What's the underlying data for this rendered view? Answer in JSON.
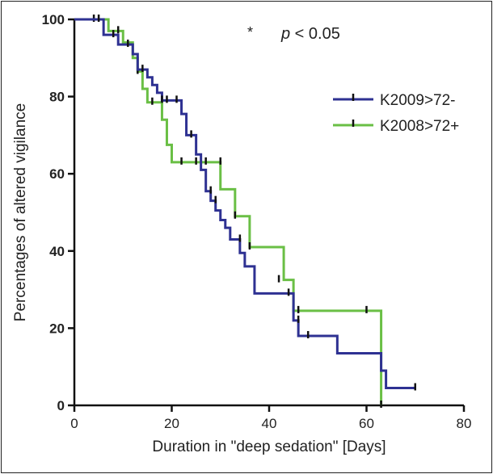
{
  "chart_data": {
    "type": "line",
    "subtype": "kaplan-meier-step",
    "title": "",
    "xlabel": "Duration in \"deep sedation\" [Days]",
    "ylabel": "Percentages of altered vigilance",
    "xlim": [
      0,
      80
    ],
    "ylim": [
      0,
      100
    ],
    "xticks": [
      "0",
      "20",
      "40",
      "60",
      "80"
    ],
    "yticks": [
      "0",
      "20",
      "40",
      "60",
      "80",
      "100"
    ],
    "annotation": {
      "star": "*",
      "p": "p",
      "rest": " < 0.05"
    },
    "legend_position": "top-right",
    "series": [
      {
        "name": "K2009>72-",
        "color": "#2e3192",
        "steps": [
          [
            0,
            100
          ],
          [
            6,
            96
          ],
          [
            9,
            93.5
          ],
          [
            12,
            91
          ],
          [
            13,
            87
          ],
          [
            15,
            85
          ],
          [
            16,
            83
          ],
          [
            17,
            81
          ],
          [
            18,
            79
          ],
          [
            22,
            75.5
          ],
          [
            23,
            70
          ],
          [
            25,
            65
          ],
          [
            26,
            61
          ],
          [
            27,
            55.5
          ],
          [
            28,
            53
          ],
          [
            29,
            50.5
          ],
          [
            30,
            48
          ],
          [
            31,
            46
          ],
          [
            32,
            43
          ],
          [
            34,
            39.5
          ],
          [
            35,
            36
          ],
          [
            37,
            29
          ],
          [
            45,
            22
          ],
          [
            46,
            18
          ],
          [
            54,
            13.5
          ],
          [
            63,
            9
          ],
          [
            64,
            4.5
          ],
          [
            70,
            4.5
          ]
        ],
        "censored": [
          [
            5,
            100
          ],
          [
            8,
            96
          ],
          [
            11,
            93.5
          ],
          [
            14,
            87
          ],
          [
            18,
            79
          ],
          [
            19,
            79
          ],
          [
            21,
            79
          ],
          [
            24,
            70
          ],
          [
            28,
            55.5
          ],
          [
            29,
            53
          ],
          [
            34,
            43
          ],
          [
            44,
            29
          ],
          [
            46,
            22
          ],
          [
            48,
            18
          ],
          [
            70,
            4.5
          ]
        ]
      },
      {
        "name": "K2008>72+",
        "color": "#6abf45",
        "steps": [
          [
            0,
            100
          ],
          [
            7,
            97
          ],
          [
            10,
            94
          ],
          [
            12,
            90
          ],
          [
            13,
            86.5
          ],
          [
            14,
            82
          ],
          [
            15,
            78.5
          ],
          [
            18,
            74
          ],
          [
            19,
            67.5
          ],
          [
            20,
            63
          ],
          [
            30,
            56
          ],
          [
            33,
            49
          ],
          [
            36,
            41
          ],
          [
            43,
            32.5
          ],
          [
            45,
            24.5
          ],
          [
            63,
            0
          ]
        ],
        "censored": [
          [
            4,
            100
          ],
          [
            9,
            97
          ],
          [
            13,
            86.5
          ],
          [
            16,
            78.5
          ],
          [
            22,
            63
          ],
          [
            25,
            63
          ],
          [
            27,
            63
          ],
          [
            30,
            63
          ],
          [
            33,
            49
          ],
          [
            36,
            41
          ],
          [
            42,
            32.5
          ],
          [
            45,
            24.5
          ],
          [
            46,
            24.5
          ],
          [
            60,
            24.5
          ],
          [
            63,
            0
          ]
        ]
      }
    ]
  }
}
